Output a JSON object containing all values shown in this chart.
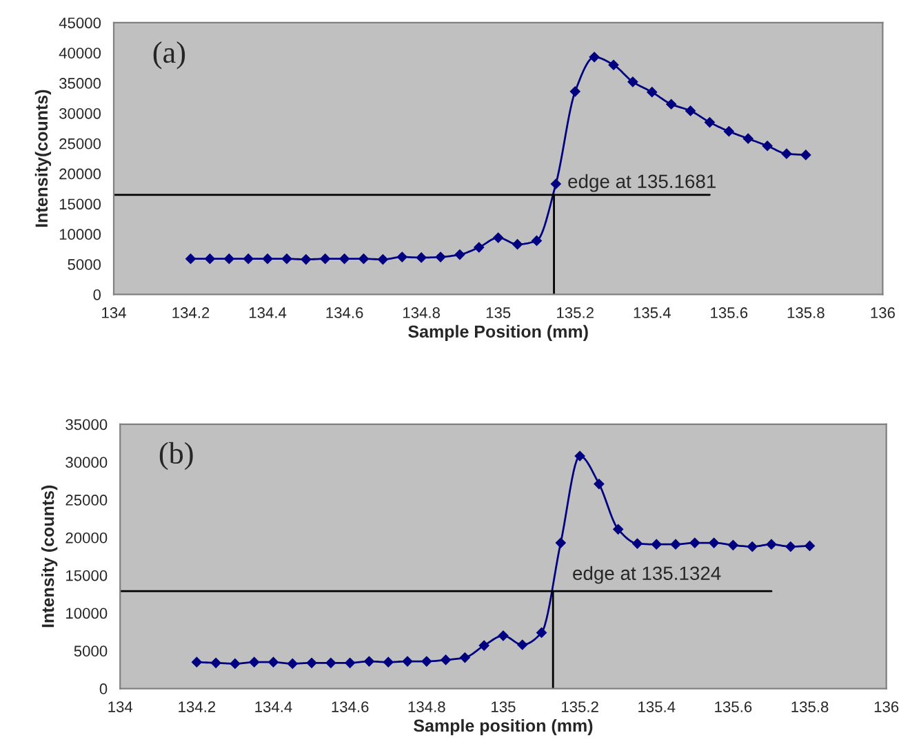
{
  "chart_data": [
    {
      "type": "line",
      "xlabel": "Sample Position (mm)",
      "ylabel": "Intensity(counts)",
      "xlim": [
        134,
        136
      ],
      "xticks": [
        134,
        134.2,
        134.4,
        134.6,
        134.8,
        135,
        135.2,
        135.4,
        135.6,
        135.8,
        136
      ],
      "ylim": [
        0,
        45000
      ],
      "yticks": [
        0,
        5000,
        10000,
        15000,
        20000,
        25000,
        30000,
        35000,
        40000,
        45000
      ],
      "grid": false,
      "legend": false,
      "annotations": [
        "(a)",
        "edge at 135.1681"
      ],
      "series": [
        {
          "color": "#000080",
          "marker": "diamond",
          "line_style": "solid",
          "x": [
            134.2,
            134.25,
            134.3,
            134.35,
            134.4,
            134.45,
            134.5,
            134.55,
            134.6,
            134.65,
            134.7,
            134.75,
            134.8,
            134.85,
            134.9,
            134.95,
            135,
            135.05,
            135.1,
            135.15,
            135.2,
            135.25,
            135.3,
            135.35,
            135.4,
            135.45,
            135.5,
            135.55,
            135.6,
            135.65,
            135.7,
            135.75,
            135.8
          ],
          "values": [
            5900,
            5900,
            5900,
            5900,
            5900,
            5900,
            5800,
            5900,
            5900,
            5900,
            5800,
            6200,
            6100,
            6200,
            6600,
            7800,
            9400,
            8300,
            8900,
            18300,
            33600,
            39300,
            38000,
            35200,
            33500,
            31500,
            30400,
            28500,
            27000,
            25800,
            24600,
            23300,
            23100
          ]
        },
        {
          "type": "line",
          "color": "#000000",
          "marker": "none",
          "line_style": "solid",
          "x": [
            134,
            135.55
          ],
          "values": [
            16500,
            16500
          ]
        },
        {
          "type": "line",
          "color": "#000000",
          "marker": "none",
          "line_style": "solid",
          "x": [
            135.145,
            135.145
          ],
          "values": [
            0,
            16500
          ]
        }
      ]
    },
    {
      "type": "line",
      "xlabel": "Sample position (mm)",
      "ylabel": "Intensity (counts)",
      "xlim": [
        134,
        136
      ],
      "xticks": [
        134,
        134.2,
        134.4,
        134.6,
        134.8,
        135,
        135.2,
        135.4,
        135.6,
        135.8,
        136
      ],
      "ylim": [
        0,
        35000
      ],
      "yticks": [
        0,
        5000,
        10000,
        15000,
        20000,
        25000,
        30000,
        35000
      ],
      "grid": false,
      "legend": false,
      "annotations": [
        "(b)",
        "edge at 135.1324"
      ],
      "series": [
        {
          "color": "#000080",
          "marker": "diamond",
          "line_style": "solid",
          "x": [
            134.2,
            134.25,
            134.3,
            134.35,
            134.4,
            134.45,
            134.5,
            134.55,
            134.6,
            134.65,
            134.7,
            134.75,
            134.8,
            134.85,
            134.9,
            134.95,
            135,
            135.05,
            135.1,
            135.15,
            135.2,
            135.25,
            135.3,
            135.35,
            135.4,
            135.45,
            135.5,
            135.55,
            135.6,
            135.65,
            135.7,
            135.75,
            135.8
          ],
          "values": [
            3500,
            3400,
            3300,
            3500,
            3500,
            3300,
            3400,
            3400,
            3400,
            3600,
            3500,
            3600,
            3600,
            3800,
            4100,
            5700,
            7000,
            5800,
            7400,
            19300,
            30800,
            27100,
            21100,
            19200,
            19100,
            19100,
            19300,
            19300,
            19000,
            18800,
            19100,
            18800,
            18900
          ]
        },
        {
          "type": "line",
          "color": "#000000",
          "marker": "none",
          "line_style": "solid",
          "x": [
            134,
            135.7
          ],
          "values": [
            12900,
            12900
          ]
        },
        {
          "type": "line",
          "color": "#000000",
          "marker": "none",
          "line_style": "solid",
          "x": [
            135.13,
            135.13
          ],
          "values": [
            0,
            12900
          ]
        }
      ]
    }
  ]
}
